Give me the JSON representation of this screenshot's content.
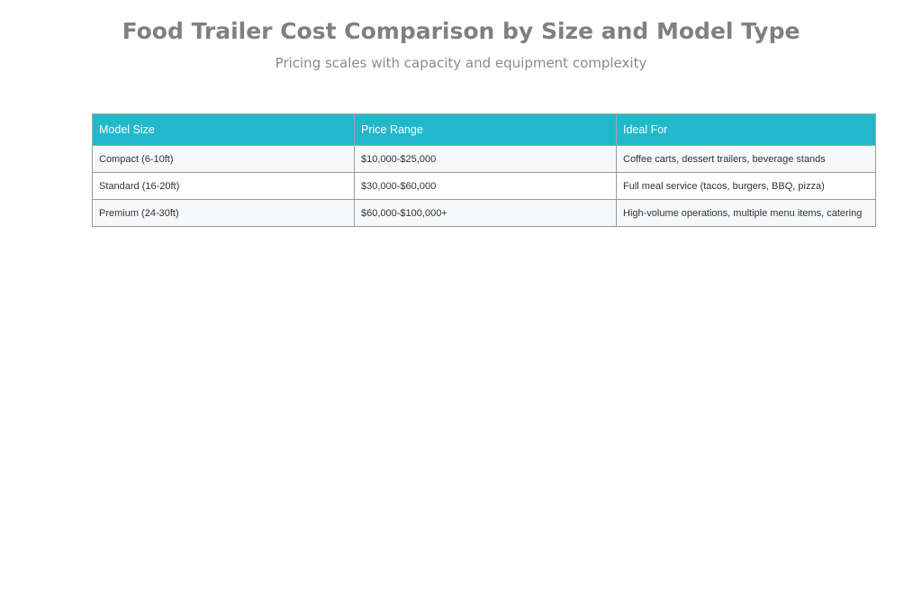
{
  "chart_data": {
    "type": "table",
    "title": "Food Trailer Cost Comparison by Size and Model Type",
    "subtitle": "Pricing scales with capacity and equipment complexity",
    "columns": [
      "Model Size",
      "Price Range",
      "Ideal For"
    ],
    "rows": [
      [
        "Compact (6-10ft)",
        "$10,000-$25,000",
        "Coffee carts, dessert trailers, beverage stands"
      ],
      [
        "Standard (16-20ft)",
        "$30,000-$60,000",
        "Full meal service (tacos, burgers, BBQ, pizza)"
      ],
      [
        "Premium (24-30ft)",
        "$60,000-$100,000+",
        "High-volume operations, multiple menu items, catering"
      ]
    ],
    "header_color": "#22b8cc"
  }
}
